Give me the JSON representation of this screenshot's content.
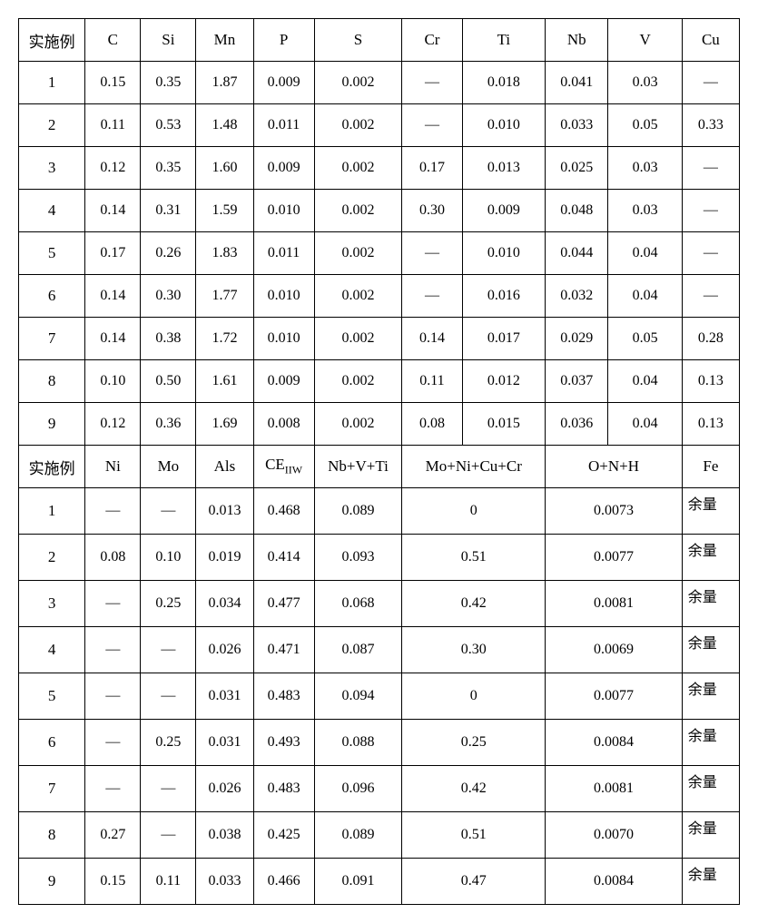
{
  "table": {
    "header1": {
      "example_label": "实施例",
      "cols": [
        "C",
        "Si",
        "Mn",
        "P",
        "S",
        "Cr",
        "Ti",
        "Nb",
        "V",
        "Cu"
      ]
    },
    "rows1": [
      {
        "label": "1",
        "cells": [
          "0.15",
          "0.35",
          "1.87",
          "0.009",
          "0.002",
          "—",
          "0.018",
          "0.041",
          "0.03",
          "—"
        ]
      },
      {
        "label": "2",
        "cells": [
          "0.11",
          "0.53",
          "1.48",
          "0.011",
          "0.002",
          "—",
          "0.010",
          "0.033",
          "0.05",
          "0.33"
        ]
      },
      {
        "label": "3",
        "cells": [
          "0.12",
          "0.35",
          "1.60",
          "0.009",
          "0.002",
          "0.17",
          "0.013",
          "0.025",
          "0.03",
          "—"
        ]
      },
      {
        "label": "4",
        "cells": [
          "0.14",
          "0.31",
          "1.59",
          "0.010",
          "0.002",
          "0.30",
          "0.009",
          "0.048",
          "0.03",
          "—"
        ]
      },
      {
        "label": "5",
        "cells": [
          "0.17",
          "0.26",
          "1.83",
          "0.011",
          "0.002",
          "—",
          "0.010",
          "0.044",
          "0.04",
          "—"
        ]
      },
      {
        "label": "6",
        "cells": [
          "0.14",
          "0.30",
          "1.77",
          "0.010",
          "0.002",
          "—",
          "0.016",
          "0.032",
          "0.04",
          "—"
        ]
      },
      {
        "label": "7",
        "cells": [
          "0.14",
          "0.38",
          "1.72",
          "0.010",
          "0.002",
          "0.14",
          "0.017",
          "0.029",
          "0.05",
          "0.28"
        ]
      },
      {
        "label": "8",
        "cells": [
          "0.10",
          "0.50",
          "1.61",
          "0.009",
          "0.002",
          "0.11",
          "0.012",
          "0.037",
          "0.04",
          "0.13"
        ]
      },
      {
        "label": "9",
        "cells": [
          "0.12",
          "0.36",
          "1.69",
          "0.008",
          "0.002",
          "0.08",
          "0.015",
          "0.036",
          "0.04",
          "0.13"
        ]
      }
    ],
    "header2": {
      "example_label": "实施例",
      "ni": "Ni",
      "mo": "Mo",
      "als": "Als",
      "ce_pre": "CE",
      "ce_sub": "IIW",
      "nbvti": "Nb+V+Ti",
      "monicocr": "Mo+Ni+Cu+Cr",
      "onh": "O+N+H",
      "fe": "Fe"
    },
    "rows2": [
      {
        "label": "1",
        "ni": "—",
        "mo": "—",
        "als": "0.013",
        "ce": "0.468",
        "nbvti": "0.089",
        "monicocr": "0",
        "onh": "0.0073",
        "fe": "余量"
      },
      {
        "label": "2",
        "ni": "0.08",
        "mo": "0.10",
        "als": "0.019",
        "ce": "0.414",
        "nbvti": "0.093",
        "monicocr": "0.51",
        "onh": "0.0077",
        "fe": "余量"
      },
      {
        "label": "3",
        "ni": "—",
        "mo": "0.25",
        "als": "0.034",
        "ce": "0.477",
        "nbvti": "0.068",
        "monicocr": "0.42",
        "onh": "0.0081",
        "fe": "余量"
      },
      {
        "label": "4",
        "ni": "—",
        "mo": "—",
        "als": "0.026",
        "ce": "0.471",
        "nbvti": "0.087",
        "monicocr": "0.30",
        "onh": "0.0069",
        "fe": "余量"
      },
      {
        "label": "5",
        "ni": "—",
        "mo": "—",
        "als": "0.031",
        "ce": "0.483",
        "nbvti": "0.094",
        "monicocr": "0",
        "onh": "0.0077",
        "fe": "余量"
      },
      {
        "label": "6",
        "ni": "—",
        "mo": "0.25",
        "als": "0.031",
        "ce": "0.493",
        "nbvti": "0.088",
        "monicocr": "0.25",
        "onh": "0.0084",
        "fe": "余量"
      },
      {
        "label": "7",
        "ni": "—",
        "mo": "—",
        "als": "0.026",
        "ce": "0.483",
        "nbvti": "0.096",
        "monicocr": "0.42",
        "onh": "0.0081",
        "fe": "余量"
      },
      {
        "label": "8",
        "ni": "0.27",
        "mo": "—",
        "als": "0.038",
        "ce": "0.425",
        "nbvti": "0.089",
        "monicocr": "0.51",
        "onh": "0.0070",
        "fe": "余量"
      },
      {
        "label": "9",
        "ni": "0.15",
        "mo": "0.11",
        "als": "0.033",
        "ce": "0.466",
        "nbvti": "0.091",
        "monicocr": "0.47",
        "onh": "0.0084",
        "fe": "余量"
      }
    ]
  },
  "colors": {
    "border": "#000000",
    "background": "#ffffff",
    "text": "#000000"
  }
}
